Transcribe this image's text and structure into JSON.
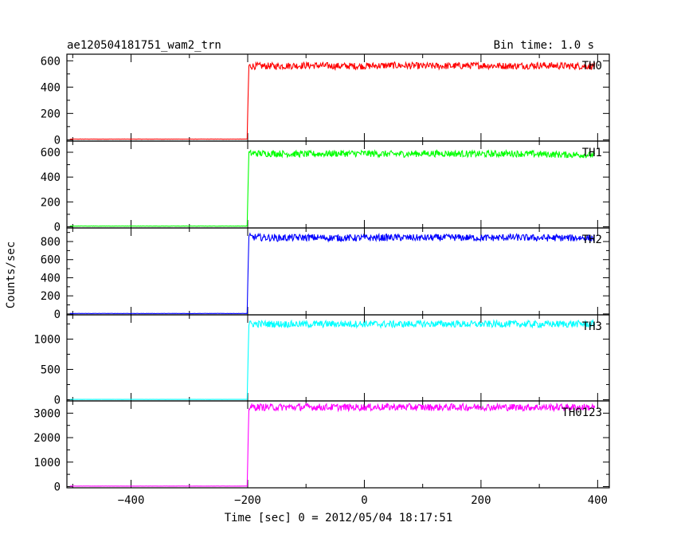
{
  "header": {
    "title": "ae120504181751_wam2_trn",
    "bin_time": "Bin time: 1.0 s"
  },
  "chart_data": {
    "type": "line",
    "title": "ae120504181751_wam2_trn",
    "subtitle": "Bin time: 1.0 s",
    "xlabel": "Time [sec] 0 = 2012/05/04 18:17:51",
    "ylabel": "Counts/sec",
    "xlim": [
      -510,
      420
    ],
    "x_ticks": [
      -400,
      -200,
      0,
      200,
      400
    ],
    "x_tick_labels": [
      "−400",
      "−200",
      "0",
      "200",
      "400"
    ],
    "step_time": -200,
    "bin_time": 1.0,
    "series": [
      {
        "name": "TH0",
        "color": "#ff0000",
        "ylim": [
          -10,
          650
        ],
        "y_ticks": [
          0,
          200,
          400,
          600
        ],
        "x": [
          -505,
          -201,
          -200,
          -198,
          -150,
          -100,
          -50,
          0,
          50,
          100,
          150,
          200,
          250,
          300,
          350,
          395
        ],
        "values": [
          5,
          5,
          200,
          560,
          560,
          565,
          560,
          560,
          565,
          560,
          560,
          565,
          560,
          565,
          560,
          560
        ]
      },
      {
        "name": "TH1",
        "color": "#00ff00",
        "ylim": [
          -10,
          690
        ],
        "y_ticks": [
          0,
          200,
          400,
          600
        ],
        "x": [
          -505,
          -201,
          -200,
          -198,
          -150,
          -100,
          -50,
          0,
          50,
          100,
          150,
          200,
          250,
          300,
          350,
          395
        ],
        "values": [
          5,
          5,
          200,
          590,
          590,
          585,
          590,
          590,
          585,
          590,
          590,
          585,
          590,
          585,
          580,
          580
        ]
      },
      {
        "name": "TH2",
        "color": "#0000ff",
        "ylim": [
          -10,
          950
        ],
        "y_ticks": [
          0,
          200,
          400,
          600,
          800
        ],
        "x": [
          -505,
          -201,
          -200,
          -198,
          -150,
          -100,
          -50,
          0,
          50,
          100,
          150,
          200,
          250,
          300,
          350,
          395
        ],
        "values": [
          5,
          5,
          300,
          850,
          840,
          845,
          840,
          840,
          845,
          840,
          845,
          840,
          845,
          840,
          840,
          840
        ]
      },
      {
        "name": "TH3",
        "color": "#00ffff",
        "ylim": [
          -20,
          1400
        ],
        "y_ticks": [
          0,
          500,
          1000
        ],
        "x": [
          -505,
          -201,
          -200,
          -198,
          -150,
          -100,
          -50,
          0,
          50,
          100,
          150,
          200,
          250,
          300,
          350,
          395
        ],
        "values": [
          5,
          5,
          400,
          1250,
          1250,
          1245,
          1250,
          1250,
          1245,
          1250,
          1250,
          1245,
          1250,
          1245,
          1250,
          1250
        ]
      },
      {
        "name": "TH0123",
        "color": "#ff00ff",
        "ylim": [
          -50,
          3500
        ],
        "y_ticks": [
          0,
          1000,
          2000,
          3000
        ],
        "x": [
          -505,
          -201,
          -200,
          -198,
          -150,
          -100,
          -50,
          0,
          50,
          100,
          150,
          200,
          250,
          300,
          350,
          395
        ],
        "values": [
          20,
          20,
          1000,
          3250,
          3240,
          3250,
          3240,
          3240,
          3250,
          3240,
          3240,
          3250,
          3240,
          3240,
          3240,
          3240
        ]
      }
    ]
  }
}
